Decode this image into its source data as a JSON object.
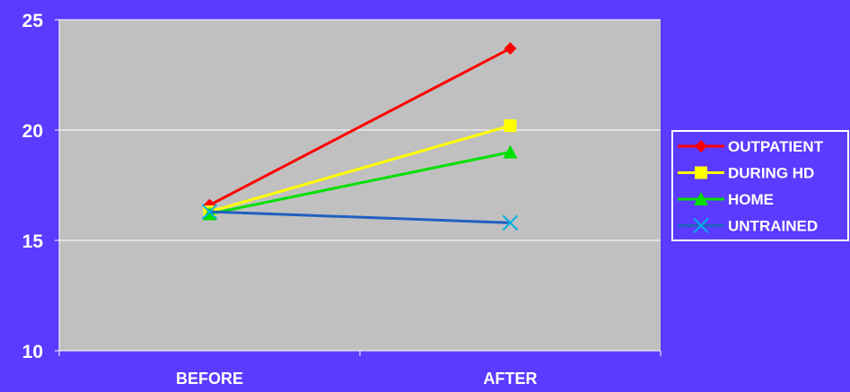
{
  "colors": {
    "background": "#5a3bff",
    "plot_area": "#c0c0c0",
    "gridline": "#ffffff",
    "text": "#ffffff"
  },
  "chart_data": {
    "type": "line",
    "title": "",
    "xlabel": "",
    "ylabel": "",
    "categories": [
      "BEFORE",
      "AFTER"
    ],
    "ylim": [
      10,
      25
    ],
    "yticks": [
      10,
      15,
      20,
      25
    ],
    "grid": true,
    "legend_position": "right",
    "series": [
      {
        "name": "OUTPATIENT",
        "values": [
          16.6,
          23.7
        ],
        "color": "#ff0000",
        "marker": "diamond"
      },
      {
        "name": "DURING HD",
        "values": [
          16.3,
          20.2
        ],
        "color": "#ffff00",
        "marker": "square"
      },
      {
        "name": "HOME",
        "values": [
          16.2,
          19.0
        ],
        "color": "#00e000",
        "marker": "triangle"
      },
      {
        "name": "UNTRAINED",
        "values": [
          16.3,
          15.8
        ],
        "color": "#00b0e8",
        "line_color": "#2060c0",
        "marker": "x"
      }
    ]
  }
}
